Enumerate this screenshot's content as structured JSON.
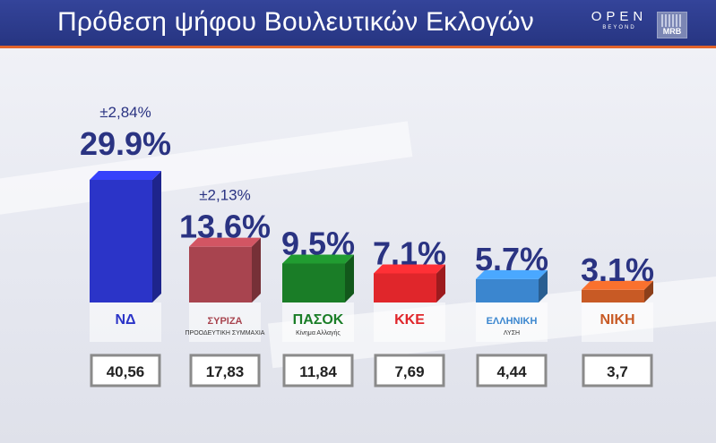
{
  "header": {
    "title": "Πρόθεση ψήφου Βουλευτικών Εκλογών",
    "channel_logo_word": "OPEN",
    "channel_logo_sub": "BEYOND",
    "pollster_logo": "MRB"
  },
  "colors": {
    "header_bg": "#2c3b8a",
    "header_rule": "#e2632b",
    "value_text": "#2a3382"
  },
  "chart_data": {
    "type": "bar",
    "title": "Πρόθεση ψήφου Βουλευτικών Εκλογών",
    "categories": [
      "ΝΔ",
      "ΣΥΡΙΖΑ",
      "ΠΑΣΟΚ",
      "ΚΚΕ",
      "Ελληνική Λύση",
      "Νίκη"
    ],
    "series": [
      {
        "values": [
          29.9,
          13.6,
          9.5,
          7.1,
          5.7,
          3.1
        ],
        "value_labels": [
          "29.9%",
          "13.6%",
          "9.5%",
          "7.1%",
          "5.7%",
          "3.1%"
        ]
      }
    ],
    "margins_of_error": [
      "±2,84%",
      "±2,13%",
      "",
      "",
      "",
      ""
    ],
    "bottom_values": [
      "40,56",
      "17,83",
      "11,84",
      "7,69",
      "4,44",
      "3,7"
    ],
    "bar_colors": [
      "#2b34c8",
      "#a8444f",
      "#1a7d27",
      "#e0262b",
      "#3b86cf",
      "#c85a25"
    ],
    "party_logos": [
      {
        "text": "ΝΔ",
        "sub": ""
      },
      {
        "text": "ΣΥΡΙΖΑ",
        "sub": "ΠΡΟΟΔΕΥΤΙΚΗ ΣΥΜΜΑΧΙΑ"
      },
      {
        "text": "ΠΑΣΟΚ",
        "sub": "Κίνημα Αλλαγής"
      },
      {
        "text": "ΚΚΕ",
        "sub": ""
      },
      {
        "text": "ΕΛΛΗΝΙΚΗ",
        "sub": "ΛΥΣΗ"
      },
      {
        "text": "ΝΙΚΗ",
        "sub": ""
      }
    ],
    "ylim": [
      0,
      32
    ],
    "grid": false,
    "legend": "none"
  }
}
